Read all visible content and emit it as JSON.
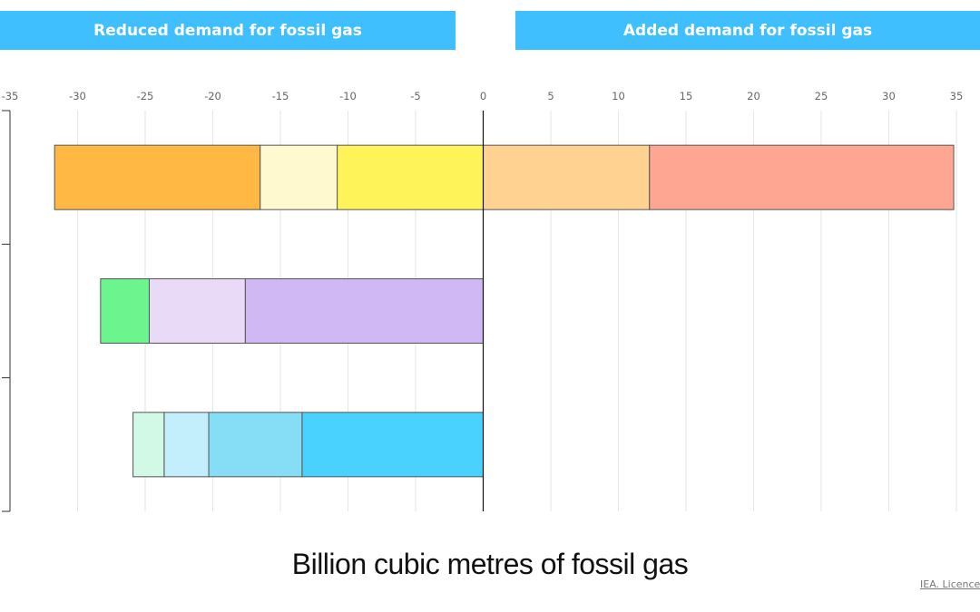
{
  "header": {
    "left_label": "Reduced demand for fossil gas",
    "right_label": "Added demand for fossil gas",
    "color": "#40BFFF"
  },
  "chart_data": {
    "type": "bar",
    "orientation": "horizontal",
    "stacked": true,
    "title": "",
    "xlabel": "Billion cubic metres of fossil gas",
    "ylabel": "",
    "xlim": [
      -35,
      35
    ],
    "xticks": [
      -35,
      -30,
      -25,
      -20,
      -15,
      -10,
      -5,
      0,
      5,
      10,
      15,
      20,
      25,
      30,
      35
    ],
    "tick_labels_position": "top",
    "grid": true,
    "legend": "none",
    "categories": [
      "",
      "",
      ""
    ],
    "rows": [
      {
        "segments": [
          {
            "start": 0,
            "end": -10.8,
            "color": "#FFF35A"
          },
          {
            "start": -10.8,
            "end": -16.5,
            "color": "#FFF9D0"
          },
          {
            "start": -16.5,
            "end": -31.7,
            "color": "#FFB844"
          },
          {
            "start": 0,
            "end": 12.3,
            "color": "#FFD292"
          },
          {
            "start": 12.3,
            "end": 34.8,
            "color": "#FFA693"
          }
        ]
      },
      {
        "segments": [
          {
            "start": 0,
            "end": -17.6,
            "color": "#D0B8F5"
          },
          {
            "start": -17.6,
            "end": -24.7,
            "color": "#E9DAF7"
          },
          {
            "start": -24.7,
            "end": -28.3,
            "color": "#6CF58F"
          }
        ]
      },
      {
        "segments": [
          {
            "start": 0,
            "end": -13.4,
            "color": "#4AD2FF"
          },
          {
            "start": -13.4,
            "end": -20.3,
            "color": "#86DDF6"
          },
          {
            "start": -20.3,
            "end": -23.6,
            "color": "#C3EEFB"
          },
          {
            "start": -23.6,
            "end": -25.9,
            "color": "#D2F9E6"
          }
        ]
      }
    ]
  },
  "footer": {
    "licence_text": "IEA. Licence"
  }
}
